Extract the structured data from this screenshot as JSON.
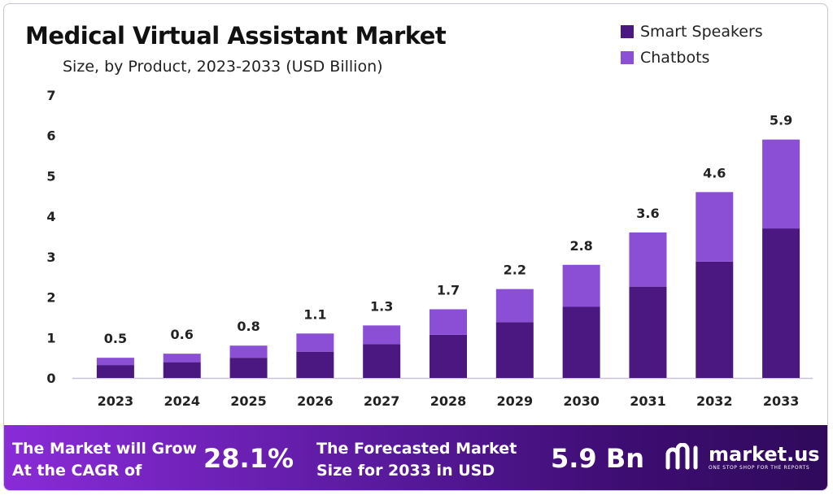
{
  "title": "Medical Virtual Assistant Market",
  "subtitle": "Size, by Product, 2023-2033 (USD Billion)",
  "legend": [
    {
      "label": "Smart Speakers",
      "color": "#4a1880"
    },
    {
      "label": "Chatbots",
      "color": "#8b4fd6"
    }
  ],
  "chart_data": {
    "type": "bar",
    "stacked": true,
    "categories": [
      "2023",
      "2024",
      "2025",
      "2026",
      "2027",
      "2028",
      "2029",
      "2030",
      "2031",
      "2032",
      "2033"
    ],
    "series": [
      {
        "name": "Smart Speakers",
        "color": "#4a1880",
        "values": [
          0.32,
          0.39,
          0.5,
          0.65,
          0.84,
          1.07,
          1.38,
          1.76,
          2.26,
          2.88,
          3.7
        ]
      },
      {
        "name": "Chatbots",
        "color": "#8b4fd6",
        "values": [
          0.18,
          0.21,
          0.3,
          0.45,
          0.46,
          0.63,
          0.82,
          1.04,
          1.34,
          1.72,
          2.2
        ]
      }
    ],
    "totals": [
      0.5,
      0.6,
      0.8,
      1.1,
      1.3,
      1.7,
      2.2,
      2.8,
      3.6,
      4.6,
      5.9
    ],
    "total_labels": [
      "0.5",
      "0.6",
      "0.8",
      "1.1",
      "1.3",
      "1.7",
      "2.2",
      "2.8",
      "3.6",
      "4.6",
      "5.9"
    ],
    "yticks": [
      "0",
      "1",
      "2",
      "3",
      "4",
      "5",
      "6",
      "7"
    ],
    "ylim": [
      0,
      7
    ],
    "grid": false,
    "legend_position": "top-right"
  },
  "footer": {
    "cagr_line1": "The Market will Grow",
    "cagr_line2": "At the CAGR of",
    "cagr_value": "28.1%",
    "forecast_line1": "The Forecasted Market",
    "forecast_line2": "Size for 2033 in USD",
    "forecast_value": "5.9 Bn",
    "brand_name": "market.us",
    "brand_tagline": "ONE STOP SHOP FOR THE REPORTS"
  }
}
